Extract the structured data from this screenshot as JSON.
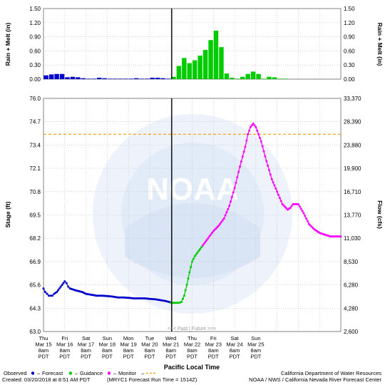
{
  "chart_data": [
    {
      "type": "bar",
      "ylabel_left": "Rain + Melt (in)",
      "ylabel_right": "Rain + Melt (in)",
      "ylim": [
        0,
        1.5
      ],
      "ytick_labels": [
        "0.00",
        "0.30",
        "0.60",
        "0.90",
        "1.20",
        "1.50"
      ],
      "observed_color": "#0000cc",
      "guidance_color": "#00cc00",
      "series": [
        {
          "name": "Observed",
          "x_hours": [
            6,
            12,
            18,
            24,
            30,
            36,
            42,
            48,
            54,
            60,
            66,
            72,
            78,
            84,
            90,
            96,
            102,
            108,
            114,
            120,
            126,
            132,
            138,
            144
          ],
          "values": [
            0.08,
            0.1,
            0.11,
            0.11,
            0.04,
            0.05,
            0.04,
            0.02,
            0.01,
            0.01,
            0.03,
            0.02,
            0.01,
            0.01,
            0.01,
            0.01,
            0.01,
            0.02,
            0.01,
            0.01,
            0.03,
            0.03,
            0.02,
            0.01
          ]
        },
        {
          "name": "Guidance",
          "x_hours": [
            150,
            156,
            162,
            168,
            174,
            180,
            186,
            192,
            198,
            204,
            210,
            216,
            222,
            228,
            234,
            240,
            246,
            252,
            258,
            264,
            270,
            276
          ],
          "values": [
            0.05,
            0.28,
            0.45,
            0.34,
            0.4,
            0.5,
            0.62,
            0.83,
            1.03,
            0.68,
            0.12,
            0.03,
            0.01,
            0.05,
            0.11,
            0.16,
            0.11,
            0.01,
            0.05,
            0.04,
            0.01,
            0.01
          ]
        }
      ]
    },
    {
      "type": "line",
      "ylabel_left": "Stage (ft)",
      "ylabel_right": "Flow (cfs)",
      "xlabel": "Pacific Local Time",
      "ylim": [
        63.0,
        76.0
      ],
      "ytick_labels_left": [
        "63.0",
        "64.3",
        "65.6",
        "66.9",
        "68.2",
        "69.5",
        "70.8",
        "72.1",
        "73.4",
        "74.7",
        "76.0"
      ],
      "ytick_labels_right": [
        "2,600",
        "4,280",
        "6,280",
        "8,530",
        "11,030",
        "13,770",
        "16,710",
        "19,900",
        "23,880",
        "28,390",
        "33,370"
      ],
      "monitor_stage_ft": 74.0,
      "monitor_color": "#ff9900",
      "x_ticks": [
        [
          "Thu",
          "Mar 15",
          "8am",
          "PDT"
        ],
        [
          "Fri",
          "Mar 16",
          "8am",
          "PDT"
        ],
        [
          "Sat",
          "Mar 17",
          "8am",
          "PDT"
        ],
        [
          "Sun",
          "Mar 18",
          "8am",
          "PDT"
        ],
        [
          "Mon",
          "Mar 19",
          "8am",
          "PDT"
        ],
        [
          "Tue",
          "Mar 20",
          "8am",
          "PDT"
        ],
        [
          "Wed",
          "Mar 21",
          "8am",
          "PDT"
        ],
        [
          "Thu",
          "Mar 22",
          "8am",
          "PDT"
        ],
        [
          "Fri",
          "Mar 23",
          "8am",
          "PDT"
        ],
        [
          "Sat",
          "Mar 24",
          "8am",
          "PDT"
        ],
        [
          "Sun",
          "Mar 25",
          "8am",
          "PDT"
        ]
      ],
      "series": [
        {
          "name": "Observed",
          "color": "#0000cc",
          "x_hours": [
            0,
            2,
            4,
            6,
            8,
            10,
            12,
            15,
            18,
            21,
            24,
            26,
            28,
            30,
            33,
            36,
            40,
            44,
            48,
            54,
            60,
            66,
            72,
            78,
            84,
            90,
            96,
            102,
            108,
            114,
            120,
            126,
            132,
            138,
            144
          ],
          "values": [
            65.4,
            65.2,
            65.1,
            65.0,
            65.0,
            65.0,
            65.1,
            65.2,
            65.4,
            65.6,
            65.8,
            65.7,
            65.5,
            65.4,
            65.35,
            65.3,
            65.25,
            65.2,
            65.1,
            65.05,
            65.0,
            65.0,
            64.98,
            64.95,
            64.9,
            64.9,
            64.88,
            64.85,
            64.85,
            64.85,
            64.82,
            64.8,
            64.75,
            64.7,
            64.62
          ]
        },
        {
          "name": "Guidance",
          "color": "#00cc00",
          "x_hours": [
            144,
            147,
            150,
            153,
            156,
            159,
            162,
            165,
            168,
            171,
            174,
            177,
            180
          ],
          "values": [
            64.6,
            64.6,
            64.6,
            64.6,
            64.65,
            65.0,
            65.6,
            66.3,
            66.9,
            67.2,
            67.4,
            67.6,
            67.8
          ]
        },
        {
          "name": "Monitor",
          "color": "#ff00ff",
          "x_hours": [
            180,
            186,
            192,
            198,
            204,
            210,
            216,
            222,
            228,
            231,
            234,
            237,
            240,
            246,
            252,
            258,
            264,
            270,
            276,
            279,
            282,
            288,
            294,
            300,
            306,
            312,
            318,
            324,
            330,
            336
          ],
          "values": [
            67.8,
            68.2,
            68.6,
            68.9,
            69.3,
            70.0,
            71.0,
            72.2,
            73.3,
            74.0,
            74.4,
            74.6,
            74.4,
            73.6,
            72.5,
            71.5,
            70.8,
            70.1,
            69.8,
            69.9,
            70.1,
            70.1,
            69.6,
            69.0,
            68.7,
            68.5,
            68.4,
            68.3,
            68.3,
            68.3
          ]
        }
      ]
    }
  ],
  "past_future_label": "<<< Past | Future >>>",
  "legend": {
    "observed": "Observed",
    "forecast": "Forecast",
    "guidance": "Guidance",
    "monitor": "Monitor"
  },
  "footer": {
    "created": "Created: 03/20/2018 at 8:51 AM PDT",
    "run": "(MRYC1 Forecast Run Time = 1514Z)",
    "agency1": "California Department of Water Resources",
    "agency2": "NOAA / NWS / California Nevada River Forecast Center"
  },
  "watermark_text": "NOAA"
}
